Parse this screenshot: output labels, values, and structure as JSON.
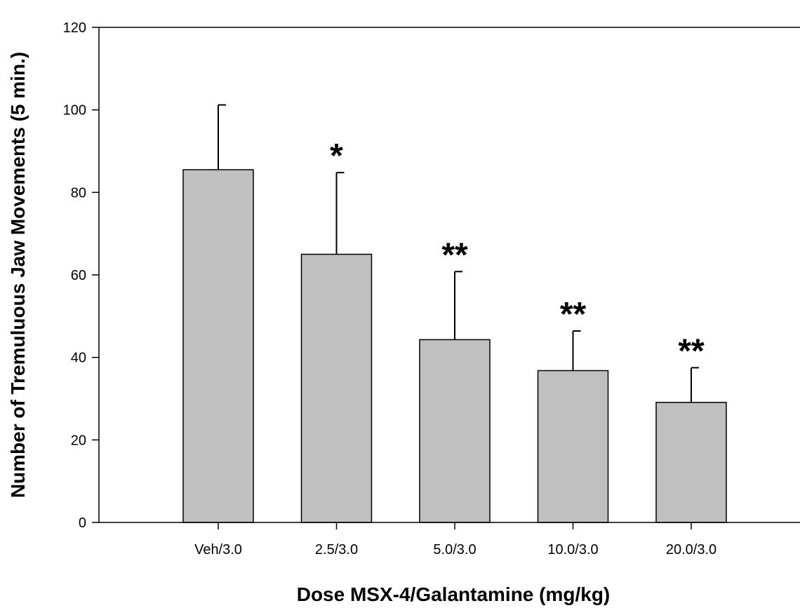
{
  "chart_data": {
    "type": "bar",
    "title": "",
    "xlabel": "Dose MSX-4/Galantamine (mg/kg)",
    "ylabel": "Number of Tremuluous Jaw Movements (5 min.)",
    "ylim": [
      0,
      120
    ],
    "yticks": [
      0,
      20,
      40,
      60,
      80,
      100,
      120
    ],
    "categories": [
      "Veh/3.0",
      "2.5/3.0",
      "5.0/3.0",
      "10.0/3.0",
      "20.0/3.0"
    ],
    "values": [
      85.5,
      65.0,
      44.3,
      36.8,
      29.1
    ],
    "error_plus": [
      15.7,
      19.8,
      16.5,
      9.6,
      8.4
    ],
    "significance": [
      "",
      "*",
      "**",
      "**",
      "**"
    ],
    "bar_color": "#c0c0c0",
    "grid": false,
    "legend": "none"
  }
}
